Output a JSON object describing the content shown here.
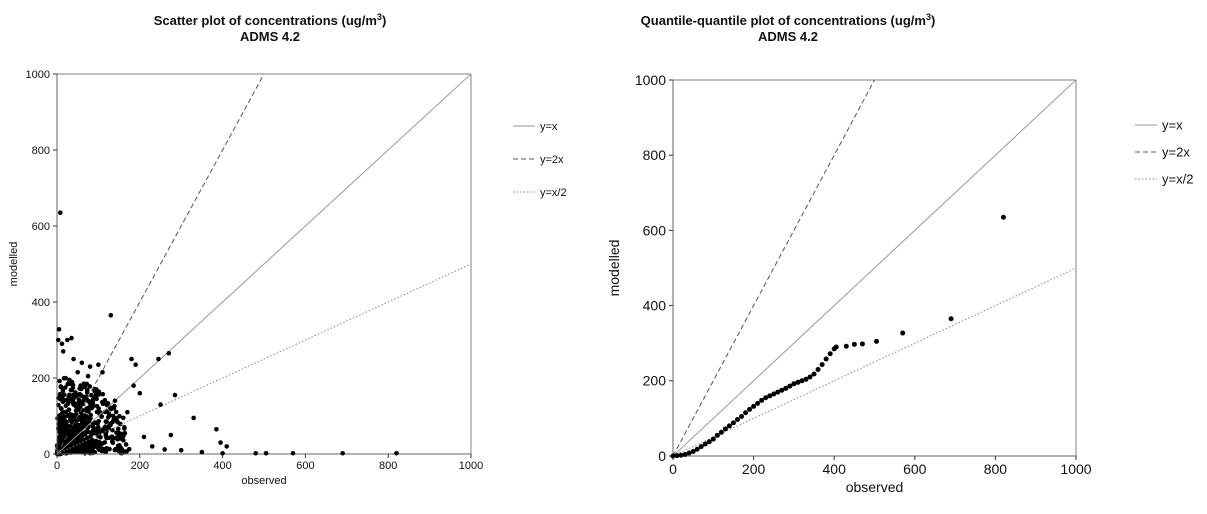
{
  "chart_data": [
    {
      "type": "scatter",
      "title": "Scatter plot of concentrations (ug/m",
      "title_superscript": "3",
      "title_suffix": ")",
      "subtitle": "ADMS 4.2",
      "xlabel": "observed",
      "ylabel": "modelled",
      "xlim": [
        0,
        1000
      ],
      "ylim": [
        0,
        1000
      ],
      "x_ticks": [
        "0",
        "200",
        "400",
        "600",
        "800",
        "1000"
      ],
      "y_ticks": [
        "0",
        "200",
        "400",
        "600",
        "800",
        "1000"
      ],
      "grid": false,
      "legend_position": "right",
      "reference_lines": [
        {
          "label": "y=x",
          "slope": 1,
          "style": "solid",
          "color": "#999999"
        },
        {
          "label": "y=2x",
          "slope": 2,
          "style": "dashed",
          "color": "#555555"
        },
        {
          "label": "y=x/2",
          "slope": 0.5,
          "style": "dotted",
          "color": "#888888"
        }
      ],
      "points": [
        {
          "x": 8,
          "y": 635
        },
        {
          "x": 5,
          "y": 328
        },
        {
          "x": 3,
          "y": 300
        },
        {
          "x": 12,
          "y": 290
        },
        {
          "x": 25,
          "y": 300
        },
        {
          "x": 35,
          "y": 305
        },
        {
          "x": 15,
          "y": 270
        },
        {
          "x": 40,
          "y": 250
        },
        {
          "x": 60,
          "y": 240
        },
        {
          "x": 80,
          "y": 230
        },
        {
          "x": 100,
          "y": 235
        },
        {
          "x": 130,
          "y": 365
        },
        {
          "x": 110,
          "y": 215
        },
        {
          "x": 50,
          "y": 215
        },
        {
          "x": 75,
          "y": 205
        },
        {
          "x": 140,
          "y": 140
        },
        {
          "x": 180,
          "y": 250
        },
        {
          "x": 190,
          "y": 235
        },
        {
          "x": 185,
          "y": 180
        },
        {
          "x": 200,
          "y": 160
        },
        {
          "x": 245,
          "y": 250
        },
        {
          "x": 270,
          "y": 265
        },
        {
          "x": 250,
          "y": 130
        },
        {
          "x": 285,
          "y": 155
        },
        {
          "x": 275,
          "y": 50
        },
        {
          "x": 330,
          "y": 95
        },
        {
          "x": 385,
          "y": 65
        },
        {
          "x": 395,
          "y": 30
        },
        {
          "x": 300,
          "y": 10
        },
        {
          "x": 350,
          "y": 5
        },
        {
          "x": 400,
          "y": 2
        },
        {
          "x": 410,
          "y": 20
        },
        {
          "x": 480,
          "y": 2
        },
        {
          "x": 505,
          "y": 2
        },
        {
          "x": 570,
          "y": 2
        },
        {
          "x": 690,
          "y": 2
        },
        {
          "x": 820,
          "y": 2
        },
        {
          "x": 160,
          "y": 95
        },
        {
          "x": 170,
          "y": 110
        },
        {
          "x": 120,
          "y": 130
        },
        {
          "x": 95,
          "y": 170
        },
        {
          "x": 65,
          "y": 185
        },
        {
          "x": 30,
          "y": 195
        },
        {
          "x": 20,
          "y": 175
        },
        {
          "x": 45,
          "y": 155
        },
        {
          "x": 85,
          "y": 140
        },
        {
          "x": 150,
          "y": 55
        },
        {
          "x": 210,
          "y": 45
        },
        {
          "x": 230,
          "y": 20
        },
        {
          "x": 260,
          "y": 12
        },
        {
          "x": 10,
          "y": 120
        },
        {
          "x": 18,
          "y": 90
        },
        {
          "x": 30,
          "y": 60
        },
        {
          "x": 55,
          "y": 40
        },
        {
          "x": 90,
          "y": 25
        },
        {
          "x": 120,
          "y": 15
        },
        {
          "x": 70,
          "y": 100
        },
        {
          "x": 100,
          "y": 70
        },
        {
          "x": 130,
          "y": 80
        },
        {
          "x": 40,
          "y": 130
        }
      ]
    },
    {
      "type": "scatter",
      "title": "Quantile-quantile plot of concentrations (ug/m",
      "title_superscript": "3",
      "title_suffix": ")",
      "subtitle": "ADMS 4.2",
      "xlabel": "observed",
      "ylabel": "modelled",
      "xlim": [
        0,
        1000
      ],
      "ylim": [
        0,
        1000
      ],
      "x_ticks": [
        "0",
        "200",
        "400",
        "600",
        "800",
        "1000"
      ],
      "y_ticks": [
        "0",
        "200",
        "400",
        "600",
        "800",
        "1000"
      ],
      "grid": false,
      "legend_position": "right",
      "reference_lines": [
        {
          "label": "y=x",
          "slope": 1,
          "style": "solid",
          "color": "#999999"
        },
        {
          "label": "y=2x",
          "slope": 2,
          "style": "dashed",
          "color": "#555555"
        },
        {
          "label": "y=x/2",
          "slope": 0.5,
          "style": "dotted",
          "color": "#888888"
        }
      ],
      "points": [
        {
          "x": 0,
          "y": 0
        },
        {
          "x": 10,
          "y": 1
        },
        {
          "x": 20,
          "y": 2
        },
        {
          "x": 30,
          "y": 4
        },
        {
          "x": 40,
          "y": 8
        },
        {
          "x": 50,
          "y": 12
        },
        {
          "x": 60,
          "y": 18
        },
        {
          "x": 70,
          "y": 25
        },
        {
          "x": 80,
          "y": 32
        },
        {
          "x": 90,
          "y": 38
        },
        {
          "x": 100,
          "y": 45
        },
        {
          "x": 110,
          "y": 55
        },
        {
          "x": 120,
          "y": 63
        },
        {
          "x": 130,
          "y": 72
        },
        {
          "x": 140,
          "y": 80
        },
        {
          "x": 150,
          "y": 88
        },
        {
          "x": 160,
          "y": 97
        },
        {
          "x": 170,
          "y": 105
        },
        {
          "x": 180,
          "y": 115
        },
        {
          "x": 190,
          "y": 124
        },
        {
          "x": 200,
          "y": 132
        },
        {
          "x": 210,
          "y": 140
        },
        {
          "x": 220,
          "y": 148
        },
        {
          "x": 230,
          "y": 155
        },
        {
          "x": 240,
          "y": 160
        },
        {
          "x": 250,
          "y": 165
        },
        {
          "x": 260,
          "y": 170
        },
        {
          "x": 270,
          "y": 175
        },
        {
          "x": 280,
          "y": 180
        },
        {
          "x": 290,
          "y": 186
        },
        {
          "x": 300,
          "y": 192
        },
        {
          "x": 310,
          "y": 196
        },
        {
          "x": 320,
          "y": 200
        },
        {
          "x": 330,
          "y": 204
        },
        {
          "x": 340,
          "y": 210
        },
        {
          "x": 350,
          "y": 218
        },
        {
          "x": 360,
          "y": 230
        },
        {
          "x": 370,
          "y": 243
        },
        {
          "x": 380,
          "y": 258
        },
        {
          "x": 390,
          "y": 272
        },
        {
          "x": 400,
          "y": 285
        },
        {
          "x": 405,
          "y": 290
        },
        {
          "x": 430,
          "y": 292
        },
        {
          "x": 450,
          "y": 297
        },
        {
          "x": 470,
          "y": 298
        },
        {
          "x": 505,
          "y": 305
        },
        {
          "x": 570,
          "y": 327
        },
        {
          "x": 690,
          "y": 365
        },
        {
          "x": 820,
          "y": 635
        }
      ]
    }
  ]
}
